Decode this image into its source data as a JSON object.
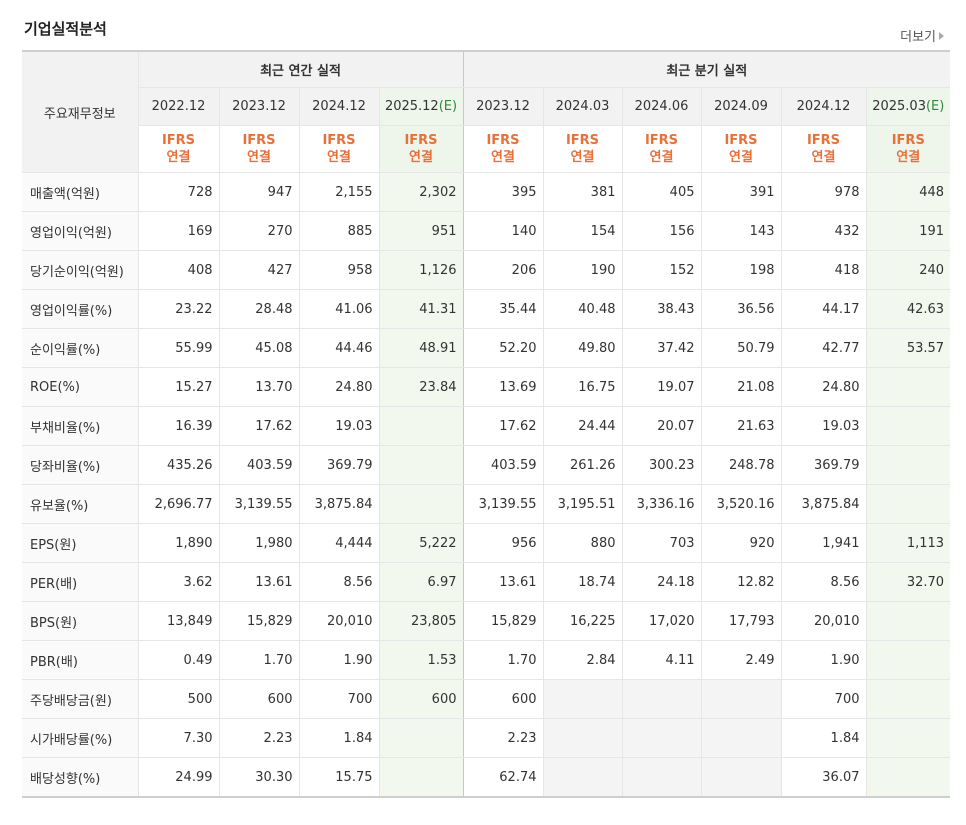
{
  "title": "기업실적분석",
  "more_label": "더보기",
  "header": {
    "row_label": "주요재무정보",
    "annual_group": "최근 연간 실적",
    "quarter_group": "최근 분기 실적",
    "annual_periods": [
      "2022.12",
      "2023.12",
      "2024.12",
      "2025.12"
    ],
    "quarter_periods": [
      "2023.12",
      "2024.03",
      "2024.06",
      "2024.09",
      "2024.12",
      "2025.03"
    ],
    "estimate_mark": "(E)",
    "ifrs_line1": "IFRS",
    "ifrs_line2": "연결"
  },
  "rows": [
    {
      "label": "매출액(억원)",
      "values": [
        "728",
        "947",
        "2,155",
        "2,302",
        "395",
        "381",
        "405",
        "391",
        "978",
        "448"
      ]
    },
    {
      "label": "영업이익(억원)",
      "values": [
        "169",
        "270",
        "885",
        "951",
        "140",
        "154",
        "156",
        "143",
        "432",
        "191"
      ]
    },
    {
      "label": "당기순이익(억원)",
      "values": [
        "408",
        "427",
        "958",
        "1,126",
        "206",
        "190",
        "152",
        "198",
        "418",
        "240"
      ]
    },
    {
      "label": "영업이익률(%)",
      "values": [
        "23.22",
        "28.48",
        "41.06",
        "41.31",
        "35.44",
        "40.48",
        "38.43",
        "36.56",
        "44.17",
        "42.63"
      ]
    },
    {
      "label": "순이익률(%)",
      "values": [
        "55.99",
        "45.08",
        "44.46",
        "48.91",
        "52.20",
        "49.80",
        "37.42",
        "50.79",
        "42.77",
        "53.57"
      ]
    },
    {
      "label": "ROE(%)",
      "values": [
        "15.27",
        "13.70",
        "24.80",
        "23.84",
        "13.69",
        "16.75",
        "19.07",
        "21.08",
        "24.80",
        ""
      ]
    },
    {
      "label": "부채비율(%)",
      "values": [
        "16.39",
        "17.62",
        "19.03",
        "",
        "17.62",
        "24.44",
        "20.07",
        "21.63",
        "19.03",
        ""
      ]
    },
    {
      "label": "당좌비율(%)",
      "values": [
        "435.26",
        "403.59",
        "369.79",
        "",
        "403.59",
        "261.26",
        "300.23",
        "248.78",
        "369.79",
        ""
      ]
    },
    {
      "label": "유보율(%)",
      "values": [
        "2,696.77",
        "3,139.55",
        "3,875.84",
        "",
        "3,139.55",
        "3,195.51",
        "3,336.16",
        "3,520.16",
        "3,875.84",
        ""
      ]
    },
    {
      "label": "EPS(원)",
      "values": [
        "1,890",
        "1,980",
        "4,444",
        "5,222",
        "956",
        "880",
        "703",
        "920",
        "1,941",
        "1,113"
      ]
    },
    {
      "label": "PER(배)",
      "values": [
        "3.62",
        "13.61",
        "8.56",
        "6.97",
        "13.61",
        "18.74",
        "24.18",
        "12.82",
        "8.56",
        "32.70"
      ]
    },
    {
      "label": "BPS(원)",
      "values": [
        "13,849",
        "15,829",
        "20,010",
        "23,805",
        "15,829",
        "16,225",
        "17,020",
        "17,793",
        "20,010",
        ""
      ]
    },
    {
      "label": "PBR(배)",
      "values": [
        "0.49",
        "1.70",
        "1.90",
        "1.53",
        "1.70",
        "2.84",
        "4.11",
        "2.49",
        "1.90",
        ""
      ]
    },
    {
      "label": "주당배당금(원)",
      "values": [
        "500",
        "600",
        "700",
        "600",
        "600",
        "",
        "",
        "",
        "700",
        ""
      ]
    },
    {
      "label": "시가배당률(%)",
      "values": [
        "7.30",
        "2.23",
        "1.84",
        "",
        "2.23",
        "",
        "",
        "",
        "1.84",
        ""
      ]
    },
    {
      "label": "배당성향(%)",
      "values": [
        "24.99",
        "30.30",
        "15.75",
        "",
        "62.74",
        "",
        "",
        "",
        "36.07",
        ""
      ]
    }
  ]
}
